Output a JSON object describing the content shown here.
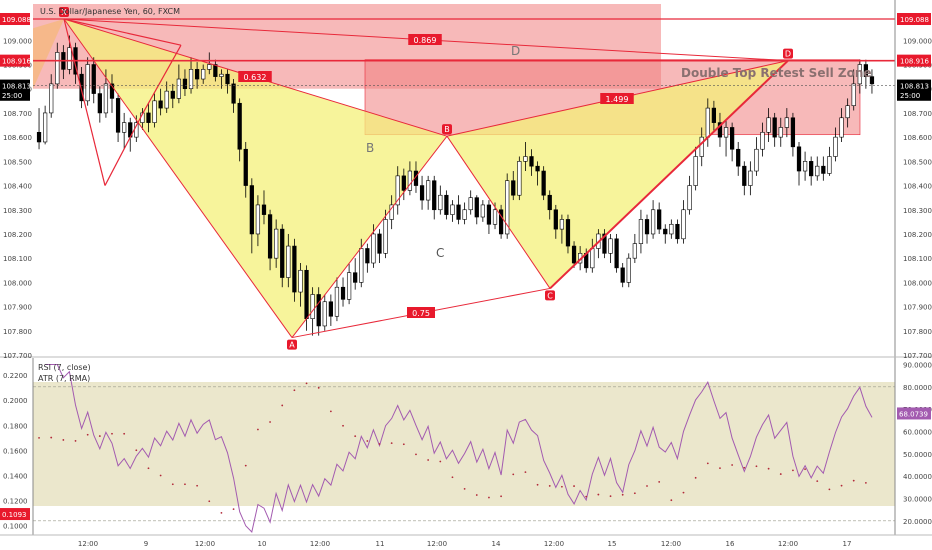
{
  "header": {
    "symbol": "U.S. Dollar/Japanese Yen, 60, FXCM"
  },
  "colors": {
    "bull": "#ffffff",
    "bear": "#000000",
    "candle_outline": "#000000",
    "pattern_fill": "#f4f07a",
    "pattern_fill_2": "#f5b76b",
    "pattern_line": "#e8293a",
    "zone_fill": "#f08080",
    "rsi_line": "#a35bb0",
    "atr_dot": "#b22a3a",
    "rsi_band": "#ebe7cc",
    "tag_red": "#e8192c",
    "tag_black": "#000000"
  },
  "chart_data": [
    {
      "type": "candlestick",
      "title": "U.S. Dollar/Japanese Yen, 60, FXCM",
      "ylim": [
        107.7,
        109.15
      ],
      "y_ticks": [
        "109.000",
        "108.900",
        "108.800",
        "108.700",
        "108.600",
        "108.500",
        "108.400",
        "108.300",
        "108.200",
        "108.100",
        "108.000",
        "107.900",
        "107.800",
        "107.700"
      ],
      "price_tags": [
        {
          "value": 109.088,
          "label": "109.088",
          "color": "red"
        },
        {
          "value": 108.916,
          "label": "108.916",
          "color": "red"
        },
        {
          "value": 108.813,
          "label": "108.813",
          "color": "black"
        },
        {
          "value": 108.775,
          "label": "25:00",
          "color": "black"
        }
      ],
      "x_ticks": [
        "12:00",
        "9",
        "12:00",
        "10",
        "12:00",
        "11",
        "12:00",
        "14",
        "12:00",
        "15",
        "12:00",
        "16",
        "12:00",
        "17"
      ],
      "candles": [
        [
          108.62,
          108.58,
          108.72,
          108.55
        ],
        [
          108.58,
          108.7,
          108.73,
          108.57
        ],
        [
          108.7,
          108.82,
          108.86,
          108.68
        ],
        [
          108.82,
          108.95,
          108.99,
          108.8
        ],
        [
          108.95,
          108.88,
          108.98,
          108.84
        ],
        [
          108.88,
          108.97,
          109.02,
          108.86
        ],
        [
          108.97,
          108.86,
          108.99,
          108.82
        ],
        [
          108.86,
          108.75,
          108.89,
          108.72
        ],
        [
          108.75,
          108.9,
          108.93,
          108.73
        ],
        [
          108.9,
          108.78,
          108.93,
          108.74
        ],
        [
          108.78,
          108.7,
          108.81,
          108.66
        ],
        [
          108.7,
          108.82,
          108.88,
          108.68
        ],
        [
          108.82,
          108.76,
          108.86,
          108.7
        ],
        [
          108.76,
          108.62,
          108.78,
          108.58
        ],
        [
          108.62,
          108.66,
          108.7,
          108.55
        ],
        [
          108.66,
          108.6,
          108.68,
          108.54
        ],
        [
          108.6,
          108.66,
          108.69,
          108.58
        ],
        [
          108.66,
          108.7,
          108.72,
          108.63
        ],
        [
          108.7,
          108.66,
          108.74,
          108.62
        ],
        [
          108.66,
          108.75,
          108.78,
          108.64
        ],
        [
          108.75,
          108.72,
          108.8,
          108.69
        ],
        [
          108.72,
          108.79,
          108.83,
          108.7
        ],
        [
          108.79,
          108.76,
          108.82,
          108.72
        ],
        [
          108.76,
          108.84,
          108.9,
          108.74
        ],
        [
          108.84,
          108.8,
          108.88,
          108.77
        ],
        [
          108.8,
          108.88,
          108.93,
          108.78
        ],
        [
          108.88,
          108.84,
          108.91,
          108.8
        ],
        [
          108.84,
          108.88,
          108.9,
          108.82
        ],
        [
          108.88,
          108.9,
          108.95,
          108.86
        ],
        [
          108.9,
          108.85,
          108.92,
          108.83
        ],
        [
          108.85,
          108.86,
          108.88,
          108.8
        ],
        [
          108.86,
          108.82,
          108.88,
          108.78
        ],
        [
          108.82,
          108.74,
          108.84,
          108.7
        ],
        [
          108.74,
          108.55,
          108.76,
          108.5
        ],
        [
          108.55,
          108.4,
          108.58,
          108.35
        ],
        [
          108.4,
          108.2,
          108.43,
          108.12
        ],
        [
          108.2,
          108.32,
          108.36,
          108.15
        ],
        [
          108.32,
          108.28,
          108.38,
          108.24
        ],
        [
          108.28,
          108.1,
          108.3,
          108.05
        ],
        [
          108.1,
          108.22,
          108.26,
          108.06
        ],
        [
          108.22,
          108.02,
          108.24,
          107.98
        ],
        [
          108.02,
          108.15,
          108.2,
          107.98
        ],
        [
          108.15,
          107.96,
          108.18,
          107.92
        ],
        [
          107.96,
          108.05,
          108.08,
          107.9
        ],
        [
          108.05,
          107.85,
          108.07,
          107.8
        ],
        [
          107.85,
          107.95,
          107.98,
          107.78
        ],
        [
          107.95,
          107.82,
          107.98,
          107.78
        ],
        [
          107.82,
          107.92,
          107.95,
          107.8
        ],
        [
          107.92,
          107.86,
          107.95,
          107.82
        ],
        [
          107.86,
          107.98,
          108.02,
          107.84
        ],
        [
          107.98,
          107.93,
          108.02,
          107.9
        ],
        [
          107.93,
          108.04,
          108.08,
          107.91
        ],
        [
          108.04,
          108.0,
          108.1,
          107.97
        ],
        [
          108.0,
          108.14,
          108.18,
          107.98
        ],
        [
          108.14,
          108.08,
          108.16,
          108.04
        ],
        [
          108.08,
          108.2,
          108.24,
          108.06
        ],
        [
          108.2,
          108.12,
          108.22,
          108.08
        ],
        [
          108.12,
          108.26,
          108.3,
          108.1
        ],
        [
          108.26,
          108.32,
          108.36,
          108.22
        ],
        [
          108.32,
          108.44,
          108.48,
          108.28
        ],
        [
          108.44,
          108.38,
          108.47,
          108.34
        ],
        [
          108.38,
          108.46,
          108.5,
          108.36
        ],
        [
          108.46,
          108.4,
          108.5,
          108.37
        ],
        [
          108.4,
          108.34,
          108.44,
          108.3
        ],
        [
          108.34,
          108.42,
          108.44,
          108.3
        ],
        [
          108.42,
          108.3,
          108.44,
          108.26
        ],
        [
          108.3,
          108.36,
          108.4,
          108.28
        ],
        [
          108.36,
          108.28,
          108.38,
          108.26
        ],
        [
          108.28,
          108.32,
          108.34,
          108.25
        ],
        [
          108.32,
          108.26,
          108.36,
          108.24
        ],
        [
          108.26,
          108.3,
          108.33,
          108.24
        ],
        [
          108.3,
          108.35,
          108.38,
          108.28
        ],
        [
          108.35,
          108.27,
          108.36,
          108.24
        ],
        [
          108.27,
          108.32,
          108.34,
          108.25
        ],
        [
          108.32,
          108.24,
          108.34,
          108.2
        ],
        [
          108.24,
          108.3,
          108.33,
          108.22
        ],
        [
          108.3,
          108.2,
          108.32,
          108.18
        ],
        [
          108.2,
          108.42,
          108.45,
          108.18
        ],
        [
          108.42,
          108.36,
          108.46,
          108.34
        ],
        [
          108.36,
          108.5,
          108.52,
          108.34
        ],
        [
          108.5,
          108.52,
          108.58,
          108.46
        ],
        [
          108.52,
          108.48,
          108.55,
          108.44
        ],
        [
          108.48,
          108.46,
          108.5,
          108.4
        ],
        [
          108.46,
          108.36,
          108.48,
          108.34
        ],
        [
          108.36,
          108.3,
          108.38,
          108.26
        ],
        [
          108.3,
          108.22,
          108.32,
          108.18
        ],
        [
          108.22,
          108.26,
          108.28,
          108.16
        ],
        [
          108.26,
          108.15,
          108.28,
          108.12
        ],
        [
          108.15,
          108.08,
          108.17,
          108.06
        ],
        [
          108.08,
          108.12,
          108.15,
          108.05
        ],
        [
          108.12,
          108.06,
          108.14,
          108.04
        ],
        [
          108.06,
          108.14,
          108.18,
          108.04
        ],
        [
          108.14,
          108.2,
          108.22,
          108.1
        ],
        [
          108.2,
          108.12,
          108.22,
          108.1
        ],
        [
          108.12,
          108.18,
          108.2,
          108.08
        ],
        [
          108.18,
          108.06,
          108.2,
          108.04
        ],
        [
          108.06,
          108.0,
          108.08,
          107.98
        ],
        [
          108.0,
          108.1,
          108.12,
          107.98
        ],
        [
          108.1,
          108.16,
          108.2,
          108.08
        ],
        [
          108.16,
          108.26,
          108.3,
          108.12
        ],
        [
          108.26,
          108.2,
          108.28,
          108.16
        ],
        [
          108.2,
          108.3,
          108.34,
          108.18
        ],
        [
          108.3,
          108.22,
          108.33,
          108.2
        ],
        [
          108.22,
          108.2,
          108.24,
          108.16
        ],
        [
          108.2,
          108.24,
          108.26,
          108.18
        ],
        [
          108.24,
          108.18,
          108.26,
          108.16
        ],
        [
          108.18,
          108.3,
          108.34,
          108.16
        ],
        [
          108.3,
          108.4,
          108.44,
          108.28
        ],
        [
          108.4,
          108.52,
          108.56,
          108.38
        ],
        [
          108.52,
          108.6,
          108.64,
          108.48
        ],
        [
          108.6,
          108.72,
          108.76,
          108.56
        ],
        [
          108.72,
          108.66,
          108.75,
          108.62
        ],
        [
          108.66,
          108.6,
          108.7,
          108.56
        ],
        [
          108.6,
          108.64,
          108.67,
          108.52
        ],
        [
          108.64,
          108.55,
          108.66,
          108.5
        ],
        [
          108.55,
          108.48,
          108.58,
          108.44
        ],
        [
          108.48,
          108.4,
          108.5,
          108.36
        ],
        [
          108.4,
          108.46,
          108.5,
          108.36
        ],
        [
          108.46,
          108.55,
          108.6,
          108.44
        ],
        [
          108.55,
          108.62,
          108.66,
          108.52
        ],
        [
          108.62,
          108.68,
          108.72,
          108.58
        ],
        [
          108.68,
          108.6,
          108.7,
          108.56
        ],
        [
          108.6,
          108.64,
          108.68,
          108.56
        ],
        [
          108.64,
          108.68,
          108.72,
          108.6
        ],
        [
          108.68,
          108.56,
          108.7,
          108.52
        ],
        [
          108.56,
          108.46,
          108.58,
          108.4
        ],
        [
          108.46,
          108.5,
          108.54,
          108.42
        ],
        [
          108.5,
          108.44,
          108.52,
          108.4
        ],
        [
          108.44,
          108.48,
          108.52,
          108.42
        ],
        [
          108.48,
          108.45,
          108.52,
          108.42
        ],
        [
          108.45,
          108.52,
          108.56,
          108.44
        ],
        [
          108.52,
          108.6,
          108.64,
          108.5
        ],
        [
          108.6,
          108.68,
          108.72,
          108.58
        ],
        [
          108.68,
          108.73,
          108.76,
          108.64
        ],
        [
          108.73,
          108.82,
          108.88,
          108.71
        ],
        [
          108.82,
          108.9,
          108.92,
          108.78
        ],
        [
          108.9,
          108.85,
          108.92,
          108.8
        ],
        [
          108.85,
          108.82,
          108.88,
          108.78
        ]
      ],
      "points": [
        {
          "label": "X",
          "price": 109.088
        },
        {
          "label": "A",
          "price": 107.772
        },
        {
          "label": "B",
          "price": 108.604
        },
        {
          "label": "C",
          "price": 107.975
        },
        {
          "label": "D",
          "price": 108.916
        }
      ],
      "ratios": [
        "0.632",
        "0.869",
        "1.499",
        "0.75"
      ],
      "text_labels": [
        "B",
        "C",
        "D",
        "Double Top Retest Sell Zone"
      ],
      "zones": [
        {
          "from": 108.8,
          "to": 109.15
        },
        {
          "from": 108.61,
          "to": 108.92
        }
      ]
    },
    {
      "type": "line",
      "series": [
        {
          "name": "RSI (7, close)"
        },
        {
          "name": "ATR (7, RMA)"
        }
      ],
      "left_ticks": [
        "0.2200",
        "0.2000",
        "0.1800",
        "0.1600",
        "0.1400",
        "0.1200",
        "0.1000"
      ],
      "right_ticks": [
        "90.0000",
        "80.0000",
        "70.0000",
        "60.0000",
        "50.0000",
        "40.0000",
        "30.0000",
        "20.0000"
      ],
      "left_tag": "0.1093",
      "right_tag": "68.0739",
      "rsi_band": [
        20,
        80
      ],
      "rsi_ylim": [
        15,
        92
      ],
      "atr_ylim": [
        0.095,
        0.232
      ]
    }
  ]
}
